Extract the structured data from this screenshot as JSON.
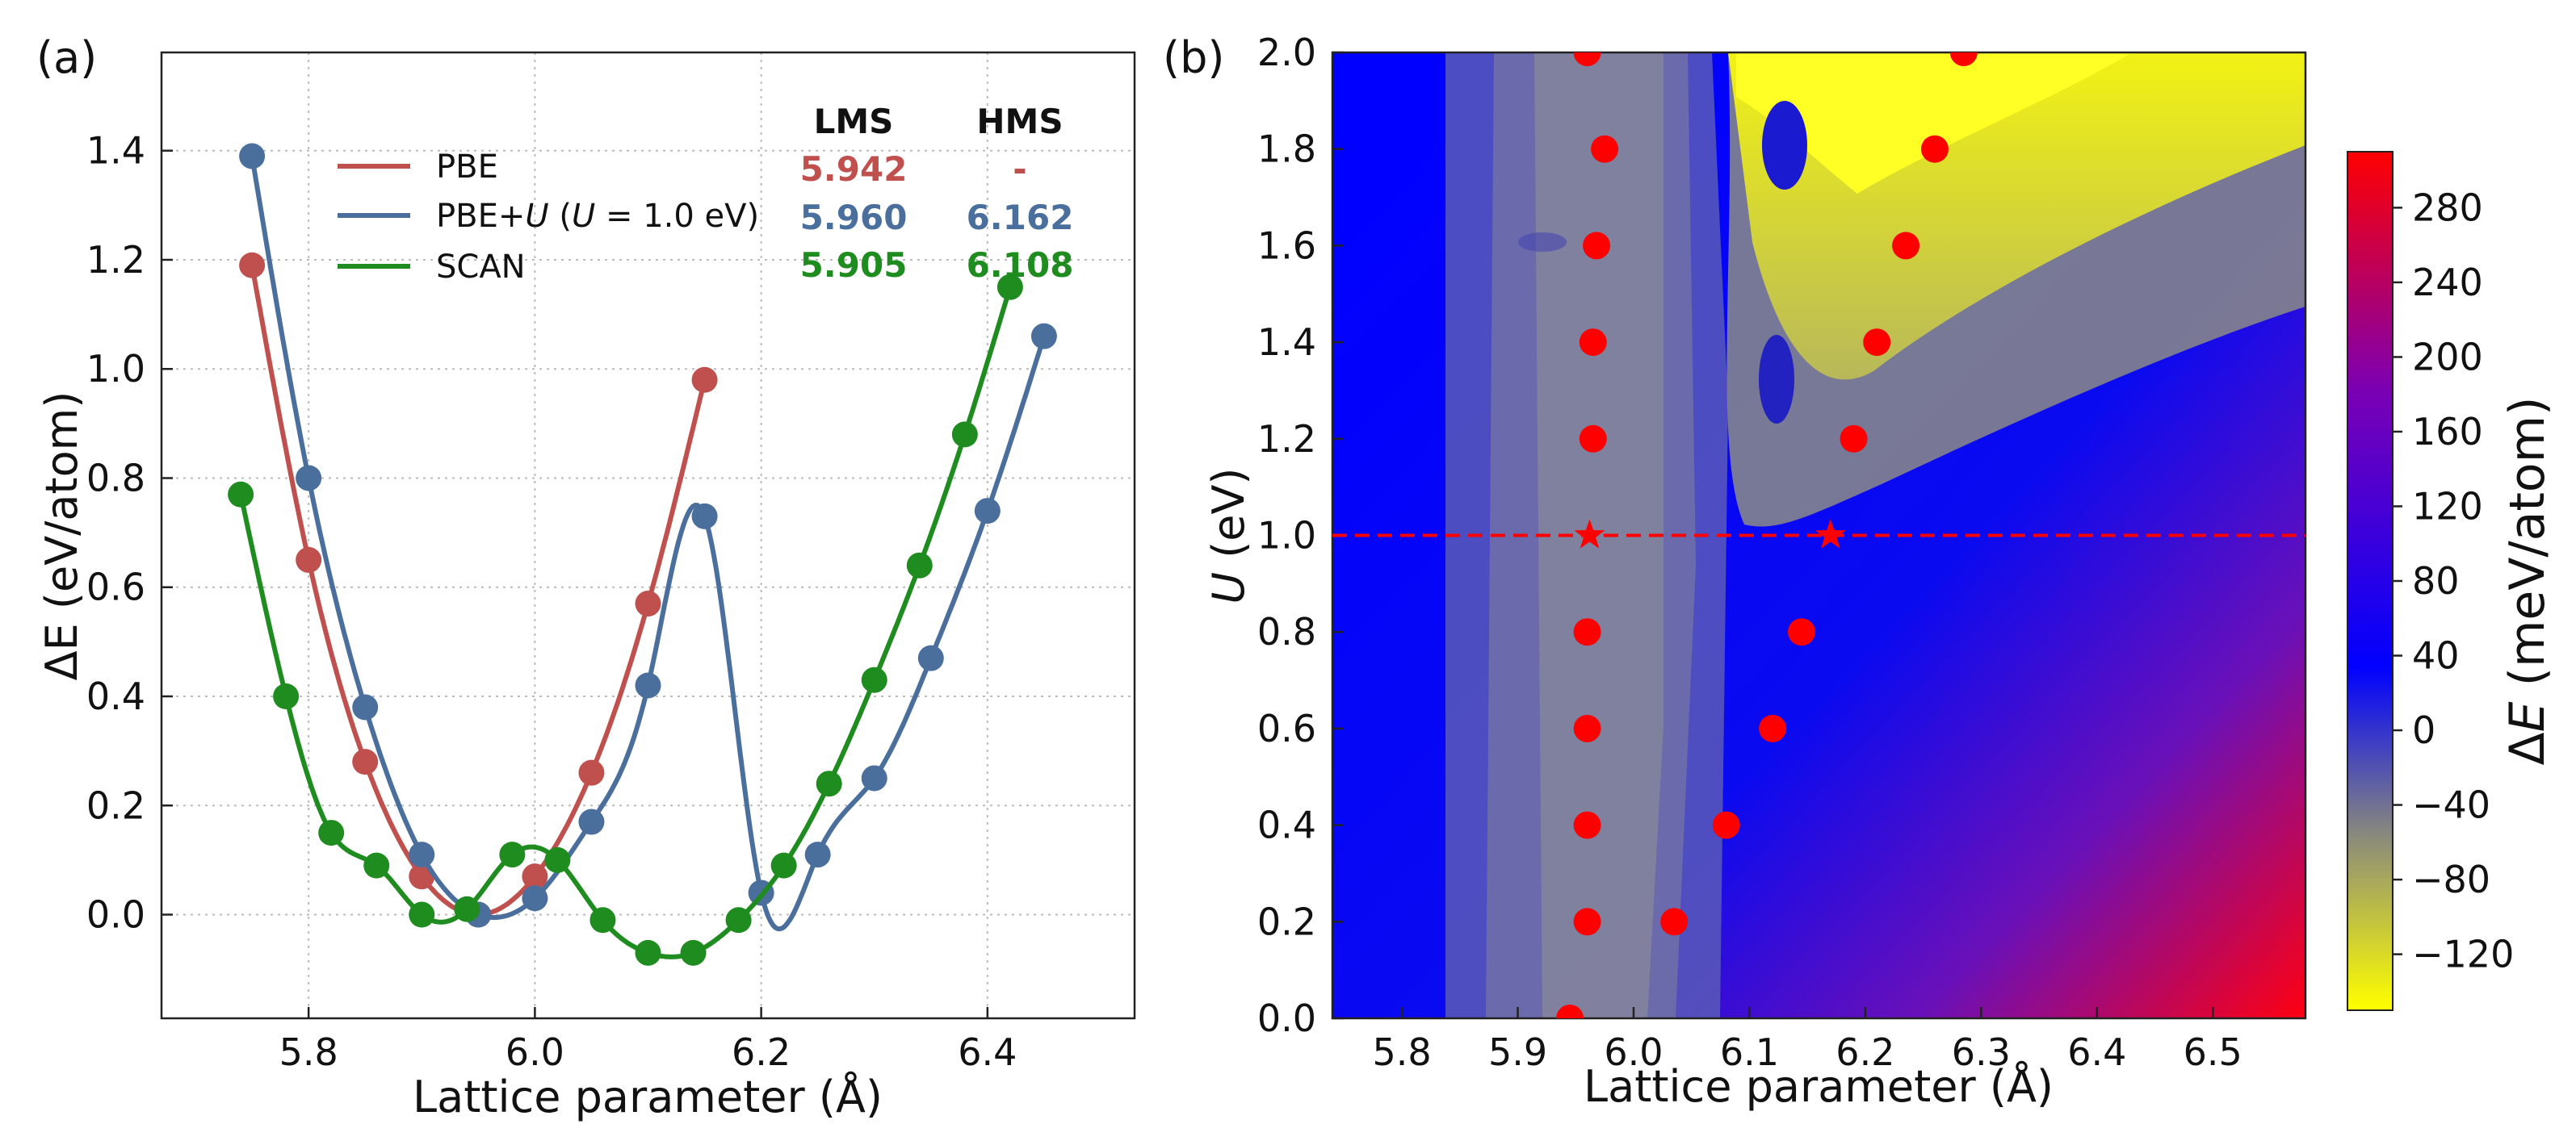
{
  "panel_a_label": "(a)",
  "panel_b_label": "(b)",
  "table": {
    "headers": [
      "LMS",
      "HMS"
    ],
    "rows": [
      {
        "series": "PBE",
        "lms": "5.942",
        "hms": "-",
        "color": "#c0504d"
      },
      {
        "series": "PBE+U",
        "lms": "5.960",
        "hms": "6.162",
        "color": "#4a6f9c"
      },
      {
        "series": "SCAN",
        "lms": "5.905",
        "hms": "6.108",
        "color": "#1f8c1f"
      }
    ]
  },
  "legend": {
    "pbe": "PBE",
    "pbeu": "PBE+U (U = 1.0 eV)",
    "scan": "SCAN"
  },
  "chart_data": [
    {
      "type": "line",
      "panel": "(a)",
      "xlabel": "Lattice parameter (Å)",
      "ylabel": "ΔE (eV/atom)",
      "xlim": [
        5.67,
        6.53
      ],
      "ylim": [
        -0.19,
        1.58
      ],
      "xticks": [
        "5.8",
        "6.0",
        "6.2",
        "6.4"
      ],
      "yticks": [
        "0.0",
        "0.2",
        "0.4",
        "0.6",
        "0.8",
        "1.0",
        "1.2",
        "1.4"
      ],
      "grid": true,
      "legend_position": "top-left",
      "series": [
        {
          "name": "PBE",
          "color": "#c0504d",
          "x": [
            5.75,
            5.8,
            5.85,
            5.9,
            5.95,
            6.0,
            6.05,
            6.1,
            6.15
          ],
          "y": [
            1.19,
            0.65,
            0.28,
            0.07,
            0.0,
            0.07,
            0.26,
            0.57,
            0.98
          ]
        },
        {
          "name": "PBE+U (U = 1.0 eV)",
          "color": "#4a6f9c",
          "x": [
            5.75,
            5.8,
            5.85,
            5.9,
            5.95,
            6.0,
            6.05,
            6.1,
            6.15,
            6.2,
            6.25,
            6.3,
            6.35,
            6.4,
            6.45
          ],
          "y": [
            1.39,
            0.8,
            0.38,
            0.11,
            0.0,
            0.03,
            0.17,
            0.42,
            0.73,
            0.04,
            0.11,
            0.25,
            0.47,
            0.74,
            1.06
          ]
        },
        {
          "name": "SCAN",
          "color": "#1f8c1f",
          "x": [
            5.74,
            5.78,
            5.82,
            5.86,
            5.9,
            5.94,
            5.98,
            6.02,
            6.06,
            6.1,
            6.14,
            6.18,
            6.22,
            6.26,
            6.3,
            6.34,
            6.38,
            6.42
          ],
          "y": [
            0.77,
            0.4,
            0.15,
            0.09,
            0.0,
            0.01,
            0.11,
            0.1,
            -0.01,
            -0.07,
            -0.07,
            -0.01,
            0.09,
            0.24,
            0.43,
            0.64,
            0.88,
            1.15
          ]
        }
      ]
    },
    {
      "type": "heatmap",
      "panel": "(b)",
      "xlabel": "Lattice parameter (Å)",
      "ylabel": "U (eV)",
      "xlim": [
        5.74,
        6.58
      ],
      "ylim": [
        0.0,
        2.0
      ],
      "xticks": [
        "5.8",
        "5.9",
        "6.0",
        "6.1",
        "6.2",
        "6.3",
        "6.4",
        "6.5"
      ],
      "yticks": [
        "0.0",
        "0.2",
        "0.4",
        "0.6",
        "0.8",
        "1.0",
        "1.2",
        "1.4",
        "1.6",
        "1.8",
        "2.0"
      ],
      "colorbar": {
        "label": "ΔE (meV/atom)",
        "range": [
          -150,
          310
        ],
        "ticks": [
          "-120",
          "-80",
          "-40",
          "0",
          "40",
          "80",
          "120",
          "160",
          "200",
          "240",
          "280"
        ],
        "colors": [
          "#ffff00",
          "#8c8c7a",
          "#0000ff",
          "#7a00b4",
          "#ff0000"
        ]
      },
      "lms_points": {
        "x": [
          5.945,
          5.96,
          5.96,
          5.96,
          5.96,
          5.965,
          5.965,
          5.968,
          5.975,
          5.96
        ],
        "u": [
          0.0,
          0.2,
          0.4,
          0.6,
          0.8,
          1.2,
          1.4,
          1.6,
          1.8,
          2.0
        ]
      },
      "hms_points": {
        "x": [
          6.035,
          6.08,
          6.12,
          6.145,
          6.19,
          6.21,
          6.235,
          6.26,
          6.285
        ],
        "u": [
          0.2,
          0.4,
          0.6,
          0.8,
          1.2,
          1.4,
          1.6,
          1.8,
          2.0
        ]
      },
      "stars": {
        "x": [
          5.962,
          6.17
        ],
        "u": [
          1.0,
          1.0
        ]
      },
      "reference_line_u": 1.0,
      "marker_color": "#ff0000"
    }
  ]
}
